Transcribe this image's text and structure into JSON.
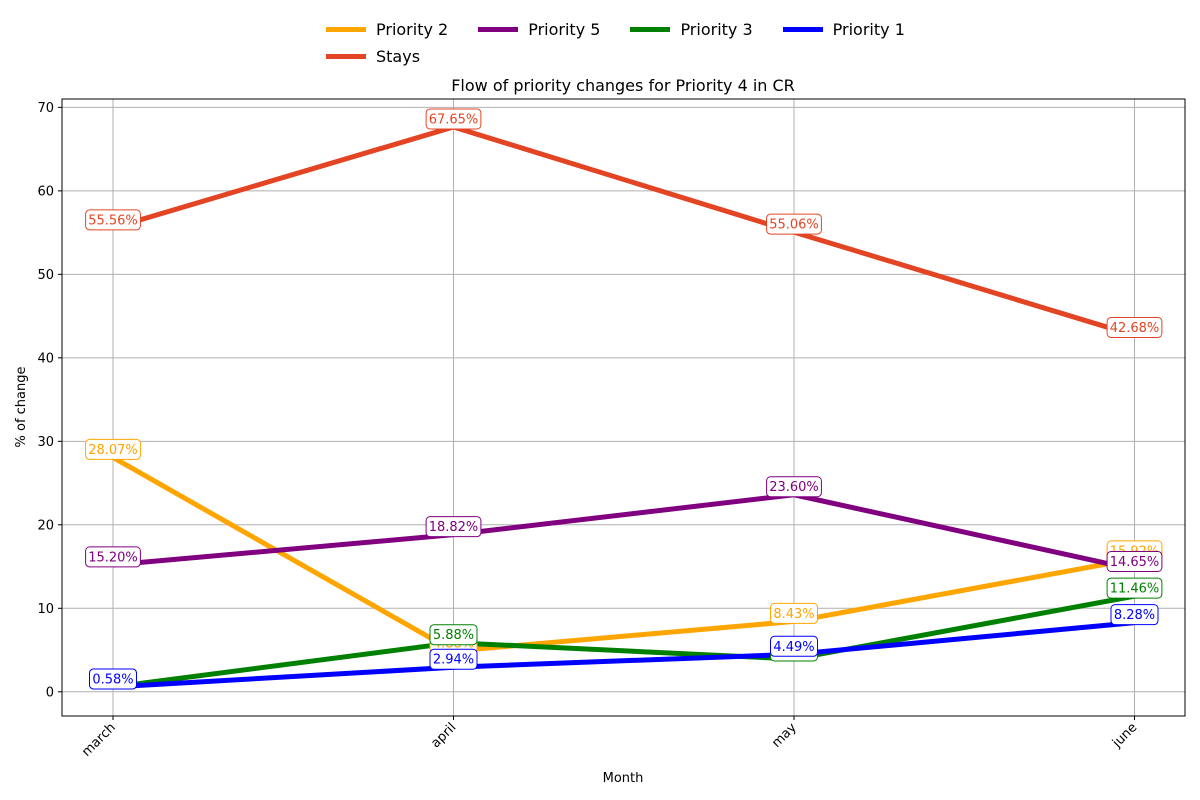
{
  "chart_data": {
    "type": "line",
    "title": "Flow of priority changes for Priority 4 in CR",
    "xlabel": "Month",
    "ylabel": "% of change",
    "categories": [
      "march",
      "april",
      "may",
      "june"
    ],
    "ylim": [
      -2.9,
      71
    ],
    "yticks": [
      0,
      10,
      20,
      30,
      40,
      50,
      60,
      70
    ],
    "grid": true,
    "legend_position": "top-center",
    "series": [
      {
        "name": "Priority 2",
        "color": "#ffa500",
        "values": [
          28.07,
          4.88,
          8.43,
          15.92
        ],
        "labels": [
          "28.07%",
          "4.88%",
          "8.43%",
          "15.92%"
        ]
      },
      {
        "name": "Priority 5",
        "color": "#800080",
        "values": [
          15.2,
          18.82,
          23.6,
          14.65
        ],
        "labels": [
          "15.20%",
          "18.82%",
          "23.60%",
          "14.65%"
        ]
      },
      {
        "name": "Priority 3",
        "color": "#008000",
        "values": [
          0.58,
          5.88,
          3.93,
          11.46
        ],
        "labels": [
          "0.58%",
          "5.88%",
          "3.93%",
          "11.46%"
        ]
      },
      {
        "name": "Priority 1",
        "color": "#0000ff",
        "values": [
          0.58,
          2.94,
          4.49,
          8.28
        ],
        "labels": [
          "0.58%",
          "2.94%",
          "4.49%",
          "8.28%"
        ]
      },
      {
        "name": "Stays",
        "color": "#e34524",
        "values": [
          55.56,
          67.65,
          55.06,
          42.68
        ],
        "labels": [
          "55.56%",
          "67.65%",
          "55.06%",
          "42.68%"
        ]
      }
    ]
  }
}
